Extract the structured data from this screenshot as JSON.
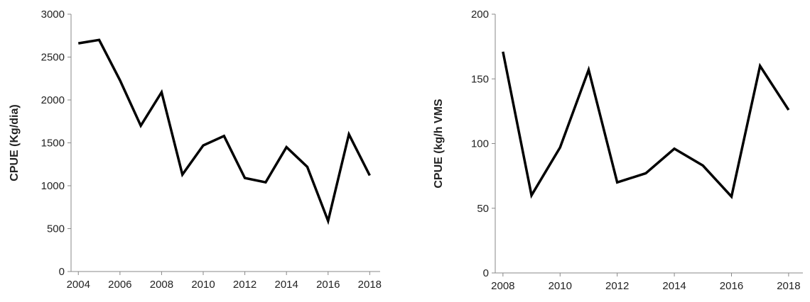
{
  "chart_data": [
    {
      "type": "line",
      "y_label": "CPUE (Kg/dia)",
      "x": [
        2004,
        2005,
        2006,
        2007,
        2008,
        2009,
        2010,
        2011,
        2012,
        2013,
        2014,
        2015,
        2016,
        2017,
        2018
      ],
      "series": [
        {
          "color": "#000000",
          "values": [
            2660,
            2700,
            2230,
            1700,
            2090,
            1130,
            1470,
            1580,
            1090,
            1040,
            1450,
            1220,
            590,
            1600,
            1120
          ]
        }
      ],
      "xlim": [
        2003.65,
        2018.5
      ],
      "xticks": [
        2004,
        2006,
        2008,
        2010,
        2012,
        2014,
        2016,
        2018
      ],
      "ylim": [
        0,
        3000
      ],
      "yticks": [
        0,
        500,
        1000,
        1500,
        2000,
        2500,
        3000
      ],
      "grid": false
    },
    {
      "type": "line",
      "y_label": "CPUE (kg/h VMS",
      "x": [
        2008,
        2009,
        2010,
        2011,
        2012,
        2013,
        2014,
        2015,
        2016,
        2017,
        2018
      ],
      "series": [
        {
          "color": "#000000",
          "values": [
            171,
            60,
            97,
            157,
            70,
            77,
            96,
            83,
            59,
            160,
            126
          ]
        }
      ],
      "xlim": [
        2007.73,
        2018.5
      ],
      "xticks": [
        2008,
        2010,
        2012,
        2014,
        2016,
        2018
      ],
      "ylim": [
        0,
        200
      ],
      "yticks": [
        0,
        50,
        100,
        150,
        200
      ],
      "grid": false
    }
  ]
}
